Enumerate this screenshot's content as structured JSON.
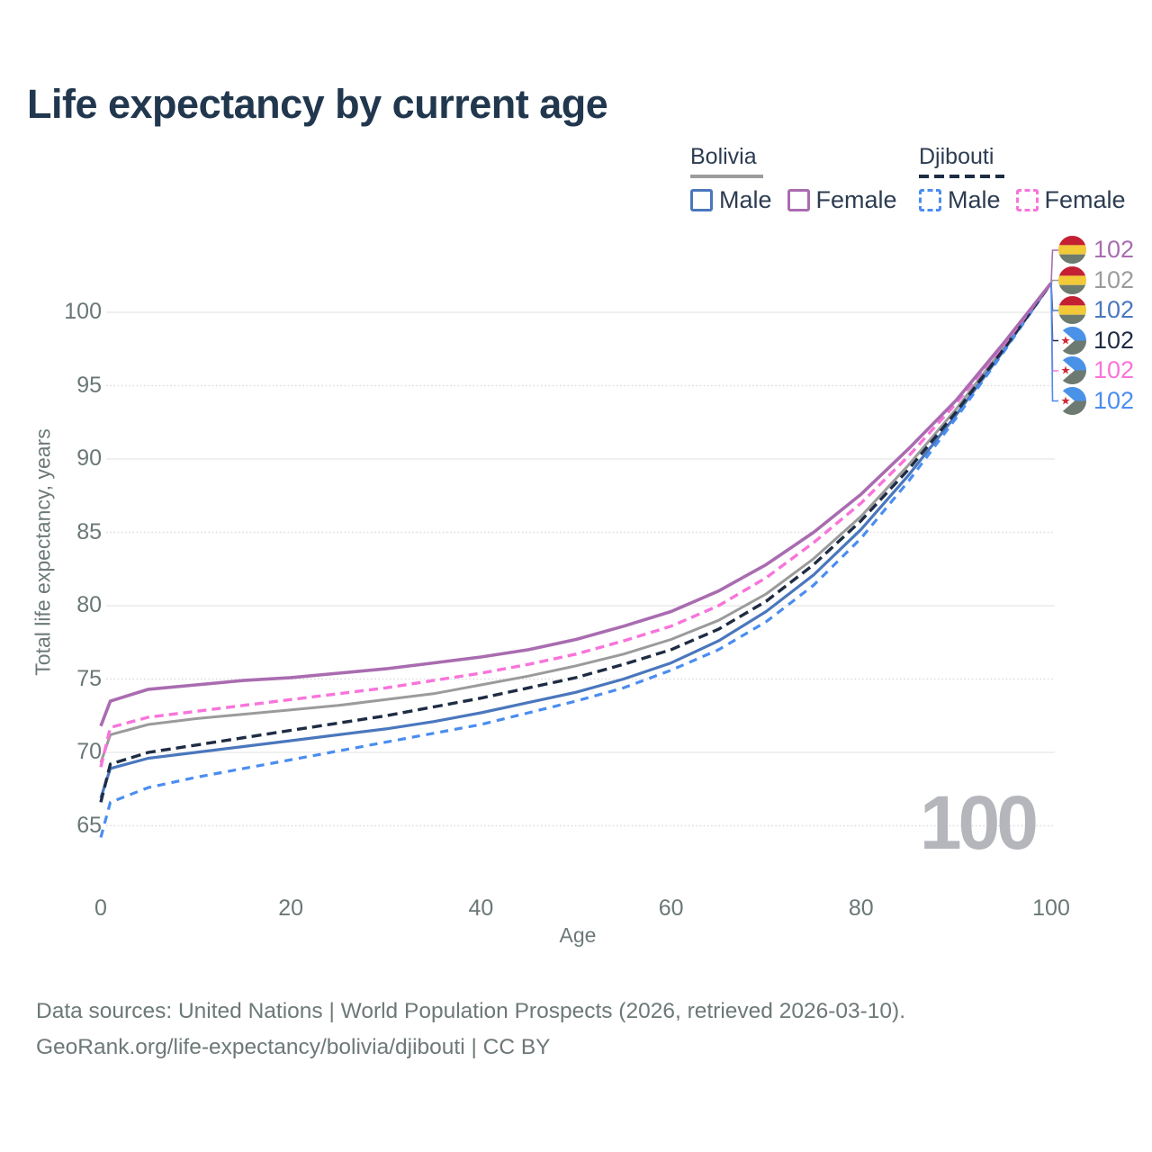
{
  "title": "Life expectancy by current age",
  "legend": {
    "groups": [
      {
        "country": "Bolivia",
        "line_style": "solid",
        "underline_color": "#9c9c9c",
        "items": [
          {
            "label": "Male",
            "color": "#4a77bd",
            "dashed": false
          },
          {
            "label": "Female",
            "color": "#a96cb0",
            "dashed": false
          }
        ]
      },
      {
        "country": "Djibouti",
        "line_style": "dashed",
        "underline_color": "#1e2c44",
        "items": [
          {
            "label": "Male",
            "color": "#4a8df0",
            "dashed": true
          },
          {
            "label": "Female",
            "color": "#f874da",
            "dashed": true
          }
        ]
      }
    ]
  },
  "chart_data": {
    "type": "line",
    "title": "Life expectancy by current age",
    "xlabel": "Age",
    "ylabel": "Total life expectancy, years",
    "x_ticks": [
      0,
      20,
      40,
      60,
      80,
      100
    ],
    "y_ticks": [
      65,
      70,
      75,
      80,
      85,
      90,
      95,
      100
    ],
    "xlim": [
      0,
      100
    ],
    "ylim": [
      62.5,
      103
    ],
    "grid": true,
    "legend_position": "top-right",
    "watermark": "100",
    "x": [
      0,
      1,
      5,
      10,
      15,
      20,
      25,
      30,
      35,
      40,
      45,
      50,
      55,
      60,
      65,
      70,
      75,
      80,
      85,
      90,
      95,
      100
    ],
    "series": [
      {
        "name": "Bolivia Female",
        "country": "Bolivia",
        "sex": "Female",
        "color": "#a96cb0",
        "dash": "solid",
        "end_label": "102",
        "flag": "bolivia",
        "values": [
          71.8,
          73.5,
          74.3,
          74.6,
          74.9,
          75.1,
          75.4,
          75.7,
          76.1,
          76.5,
          77.0,
          77.7,
          78.6,
          79.6,
          81.0,
          82.8,
          85.0,
          87.6,
          90.7,
          94.0,
          97.9,
          102
        ]
      },
      {
        "name": "Bolivia (both sexes)",
        "country": "Bolivia",
        "sex": "Both",
        "color": "#9b9b9b",
        "dash": "solid",
        "end_label": "102",
        "flag": "bolivia",
        "values": [
          69.3,
          71.2,
          71.9,
          72.3,
          72.6,
          72.9,
          73.2,
          73.6,
          74.0,
          74.6,
          75.2,
          75.9,
          76.7,
          77.7,
          79.0,
          80.8,
          83.2,
          86.1,
          89.6,
          93.4,
          97.6,
          102
        ]
      },
      {
        "name": "Bolivia Male",
        "country": "Bolivia",
        "sex": "Male",
        "color": "#4a77bd",
        "dash": "solid",
        "end_label": "102",
        "flag": "bolivia",
        "values": [
          66.9,
          68.9,
          69.6,
          70.0,
          70.4,
          70.8,
          71.2,
          71.6,
          72.1,
          72.7,
          73.4,
          74.1,
          75.0,
          76.1,
          77.6,
          79.6,
          82.1,
          85.2,
          88.9,
          93.0,
          97.4,
          102
        ]
      },
      {
        "name": "Djibouti (both sexes)",
        "country": "Djibouti",
        "sex": "Both",
        "color": "#1e2c44",
        "dash": "dashed",
        "end_label": "102",
        "flag": "djibouti",
        "values": [
          66.6,
          69.2,
          70.0,
          70.5,
          71.0,
          71.5,
          72.0,
          72.5,
          73.1,
          73.7,
          74.4,
          75.1,
          76.0,
          77.0,
          78.4,
          80.3,
          82.8,
          85.8,
          89.3,
          93.2,
          97.5,
          102
        ]
      },
      {
        "name": "Djibouti Female",
        "country": "Djibouti",
        "sex": "Female",
        "color": "#f874da",
        "dash": "dashed",
        "end_label": "102",
        "flag": "djibouti",
        "values": [
          69.0,
          71.7,
          72.4,
          72.8,
          73.2,
          73.6,
          74.0,
          74.4,
          74.9,
          75.4,
          76.0,
          76.7,
          77.6,
          78.6,
          80.0,
          81.9,
          84.3,
          87.0,
          90.2,
          93.8,
          97.8,
          102
        ]
      },
      {
        "name": "Djibouti Male",
        "country": "Djibouti",
        "sex": "Male",
        "color": "#4a8df0",
        "dash": "dashed",
        "end_label": "102",
        "flag": "djibouti",
        "values": [
          64.2,
          66.6,
          67.6,
          68.3,
          68.9,
          69.5,
          70.1,
          70.7,
          71.3,
          71.9,
          72.7,
          73.5,
          74.4,
          75.6,
          77.0,
          78.9,
          81.4,
          84.6,
          88.5,
          92.8,
          97.3,
          102
        ]
      }
    ]
  },
  "flag_colors": {
    "bolivia": {
      "red": "#c32034",
      "yellow": "#f2c938",
      "green": "#6d7a6e"
    },
    "djibouti": {
      "blue": "#4a92e8",
      "green": "#6d7a72",
      "white": "#ffffff",
      "star_red": "#ce2a3a"
    }
  },
  "footer": {
    "line1": "Data sources: United Nations | World Population Prospects (2026, retrieved 2026-03-10).",
    "line2": "GeoRank.org/life-expectancy/bolivia/djibouti | CC BY"
  }
}
